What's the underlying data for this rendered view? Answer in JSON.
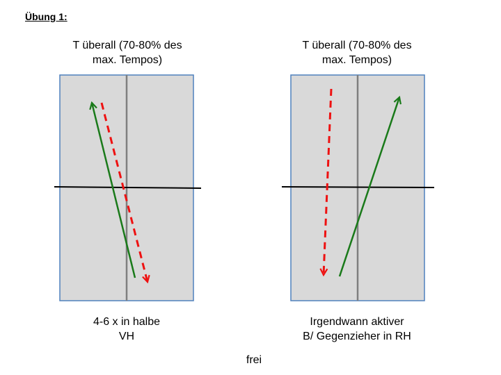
{
  "title": "Übung 1:",
  "left_panel": {
    "top_caption": [
      "T überall (70-80% des",
      "max. Tempos)"
    ],
    "bottom_caption": [
      "4-6 x in halbe",
      "VH"
    ]
  },
  "right_panel": {
    "top_caption": [
      "T überall (70-80% des",
      "max. Tempos)"
    ],
    "bottom_caption": [
      "Irgendwann aktiver",
      "B/ Gegenzieher in RH"
    ]
  },
  "footer": "frei",
  "colors": {
    "field_fill": "#d9d9d9",
    "field_border": "#4f81bd",
    "center_line": "#7f7f7f",
    "cross_line": "#000000",
    "solid_arrow": "#1a7a1a",
    "dashed_arrow": "#ee1111"
  }
}
